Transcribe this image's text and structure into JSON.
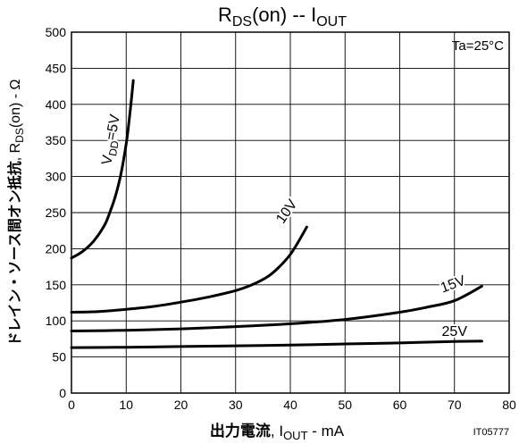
{
  "chart_data": {
    "type": "line",
    "title": "RDS(on) -- IOUT",
    "title_parts": {
      "main": "R",
      "sub": "DS",
      "after": "(on)  --  I",
      "out_sub": "OUT"
    },
    "xlabel_parts": {
      "jp": "出力電流",
      "sep": ", ",
      "i": "I",
      "sub": "OUT",
      "tail": " - mA"
    },
    "ylabel_parts": {
      "jp": "ドレイン・ソース間オン抵抗",
      "sep": ", R",
      "sub": "DS",
      "tail": "(on) - Ω"
    },
    "annotation": "Ta=25°C",
    "figure_id": "IT05777",
    "grid": true,
    "xlim": [
      0,
      80
    ],
    "ylim": [
      0,
      500
    ],
    "x_ticks": [
      0,
      10,
      20,
      30,
      40,
      50,
      60,
      70,
      80
    ],
    "y_ticks": [
      0,
      50,
      100,
      150,
      200,
      250,
      300,
      350,
      400,
      450,
      500
    ],
    "series": [
      {
        "name": "VDD=5V",
        "label_parts": {
          "main": "V",
          "sub": "DD",
          "tail": "=5V"
        },
        "x": [
          0,
          2,
          4,
          6,
          7,
          8,
          9,
          10,
          10.5,
          11,
          11.3
        ],
        "y": [
          187,
          196,
          210,
          232,
          250,
          272,
          302,
          345,
          375,
          410,
          433
        ]
      },
      {
        "name": "10V",
        "x": [
          0,
          5,
          10,
          15,
          20,
          25,
          30,
          33,
          36,
          38,
          40,
          41.5,
          43
        ],
        "y": [
          112,
          113,
          116,
          120,
          126,
          133,
          142,
          150,
          162,
          175,
          192,
          210,
          230
        ]
      },
      {
        "name": "15V",
        "x": [
          0,
          10,
          20,
          30,
          40,
          50,
          60,
          65,
          70,
          75
        ],
        "y": [
          86,
          87,
          89,
          92,
          96,
          102,
          112,
          119,
          128,
          148
        ]
      },
      {
        "name": "25V",
        "x": [
          0,
          10,
          20,
          30,
          40,
          50,
          60,
          70,
          75
        ],
        "y": [
          63,
          63.5,
          64.5,
          65.5,
          66.5,
          68,
          69.5,
          71.5,
          72
        ]
      }
    ]
  }
}
